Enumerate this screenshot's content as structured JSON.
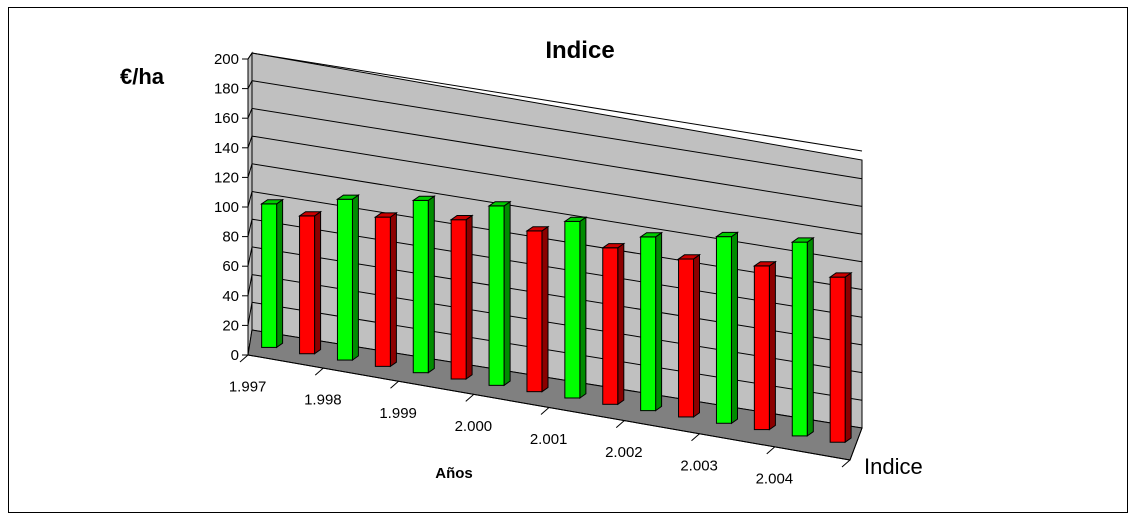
{
  "chart_data": {
    "type": "bar",
    "title": "Indice",
    "ylabel": "€/ha",
    "xlabel": "Años",
    "depth_label": "Indice",
    "ylim": [
      0,
      200
    ],
    "yticks": [
      "0",
      "20",
      "40",
      "60",
      "80",
      "100",
      "120",
      "140",
      "160",
      "180",
      "200"
    ],
    "categories": [
      "1.997",
      "1.998",
      "1.999",
      "2.000",
      "2.001",
      "2.002",
      "2.003",
      "2.004"
    ],
    "series": [
      {
        "color": "#00ff00",
        "values": [
          100,
          112,
          120,
          125,
          123,
          121,
          130,
          135
        ]
      },
      {
        "color": "#ff0000",
        "values": [
          96,
          104,
          111,
          112,
          109,
          110,
          114,
          115
        ]
      }
    ],
    "grid": true,
    "style": "3d-column"
  }
}
